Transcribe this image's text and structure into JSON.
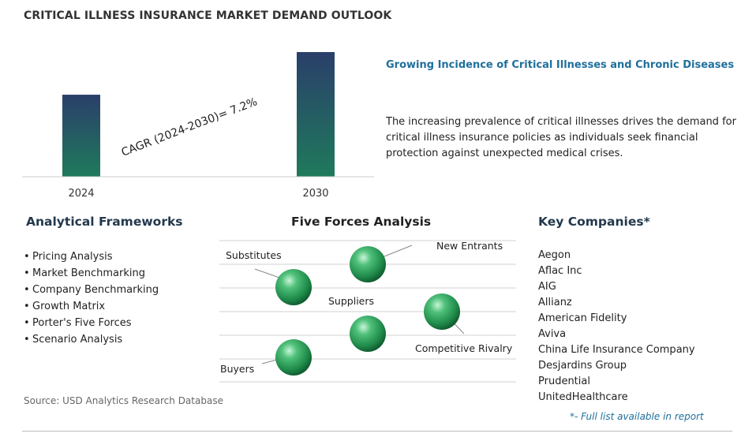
{
  "title": "CRITICAL ILLNESS INSURANCE MARKET DEMAND OUTLOOK",
  "chart_data": {
    "type": "bar",
    "categories": [
      "2024",
      "2030"
    ],
    "values": [
      1.0,
      1.52
    ],
    "annotation": "CAGR (2024-2030)=  7.2%",
    "title": "",
    "xlabel": "",
    "ylabel": "",
    "grid": false
  },
  "insight": {
    "title": "Growing Incidence of Critical Illnesses and Chronic Diseases",
    "body": "The increasing prevalence of critical illnesses drives the demand for critical illness insurance policies as individuals seek financial protection against unexpected medical crises."
  },
  "frameworks": {
    "heading": "Analytical Frameworks",
    "items": [
      "Pricing Analysis",
      "Market Benchmarking",
      "Company Benchmarking",
      "Growth Matrix",
      "Porter's Five Forces",
      "Scenario Analysis"
    ]
  },
  "five_forces": {
    "heading": "Five Forces Analysis",
    "labels": {
      "new_entrants": "New Entrants",
      "substitutes": "Substitutes",
      "suppliers": "Suppliers",
      "competitive_rivalry": "Competitive Rivalry",
      "buyers": "Buyers"
    },
    "sphere_color": "#2e9e5a"
  },
  "companies": {
    "heading": "Key Companies*",
    "items": [
      "Aegon",
      "Aflac Inc",
      "AIG",
      "Allianz",
      "American Fidelity",
      "Aviva",
      "China Life Insurance Company",
      "Desjardins Group",
      "Prudential",
      "UnitedHealthcare"
    ],
    "note": "*- Full list available in report"
  },
  "source": "Source: USD Analytics Research Database",
  "colors": {
    "bar_top": "#2a3f6a",
    "bar_bottom": "#1f7a5c",
    "accent": "#1f6f9c"
  }
}
